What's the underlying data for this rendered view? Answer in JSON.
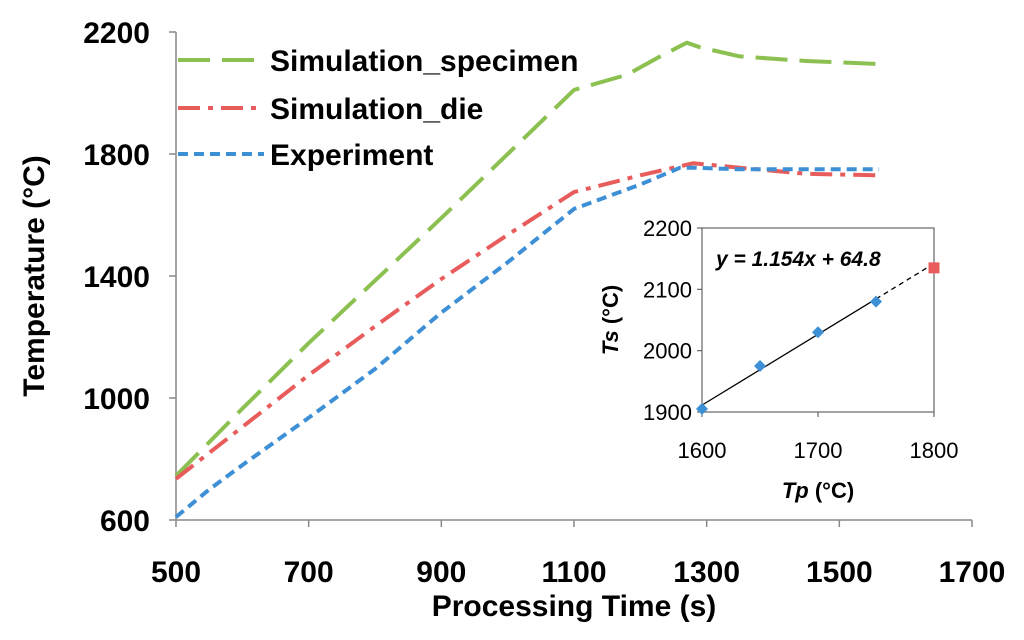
{
  "chart_data": [
    {
      "type": "line",
      "title": "",
      "xlabel": "Processing Time (s)",
      "ylabel": "Temperature (°C)",
      "xlim": [
        500,
        1700
      ],
      "ylim": [
        600,
        2200
      ],
      "xticks": [
        "500",
        "700",
        "900",
        "1100",
        "1300",
        "1500",
        "1700"
      ],
      "yticks": [
        "600",
        "1000",
        "1400",
        "1800",
        "2200"
      ],
      "grid": false,
      "legend": "top-left",
      "series": [
        {
          "name": "Simulation_specimen",
          "color": "#8CC152",
          "style": "long-dash",
          "x": [
            500,
            600,
            700,
            800,
            900,
            1000,
            1100,
            1180,
            1230,
            1270,
            1290,
            1350,
            1450,
            1560
          ],
          "y": [
            745,
            965,
            1180,
            1385,
            1590,
            1800,
            2010,
            2060,
            2120,
            2165,
            2150,
            2120,
            2105,
            2095
          ]
        },
        {
          "name": "Simulation_die",
          "color": "#E85C5C",
          "style": "dash-dot",
          "x": [
            500,
            600,
            700,
            800,
            900,
            1000,
            1100,
            1200,
            1280,
            1350,
            1450,
            1560
          ],
          "y": [
            735,
            905,
            1075,
            1235,
            1390,
            1535,
            1675,
            1730,
            1770,
            1755,
            1735,
            1730
          ]
        },
        {
          "name": "Experiment",
          "color": "#3D8FD6",
          "style": "short-dash",
          "x": [
            500,
            550,
            600,
            700,
            800,
            900,
            1000,
            1100,
            1200,
            1260,
            1280,
            1350,
            1450,
            1560
          ],
          "y": [
            610,
            700,
            780,
            935,
            1095,
            1280,
            1445,
            1620,
            1700,
            1755,
            1755,
            1750,
            1750,
            1750
          ]
        }
      ]
    },
    {
      "type": "scatter",
      "title": "",
      "xlabel_main": "Tp",
      "xlabel_unit": "(°C)",
      "ylabel_main": "Ts",
      "ylabel_unit": "(°C)",
      "xlim": [
        1600,
        1800
      ],
      "ylim": [
        1900,
        2200
      ],
      "xticks": [
        "1600",
        "1700",
        "1800"
      ],
      "yticks": [
        "1900",
        "2000",
        "2100",
        "2200"
      ],
      "equation": "y = 1.154x + 64.8",
      "slope": 1.154,
      "intercept": 64.8,
      "points": [
        {
          "x": 1600,
          "y": 1905,
          "marker": "diamond",
          "color": "#3D8FD6"
        },
        {
          "x": 1650,
          "y": 1975,
          "marker": "diamond",
          "color": "#3D8FD6"
        },
        {
          "x": 1700,
          "y": 2030,
          "marker": "diamond",
          "color": "#3D8FD6"
        },
        {
          "x": 1750,
          "y": 2080,
          "marker": "diamond",
          "color": "#3D8FD6"
        },
        {
          "x": 1800,
          "y": 2135,
          "marker": "square",
          "color": "#E85C5C"
        }
      ]
    }
  ]
}
